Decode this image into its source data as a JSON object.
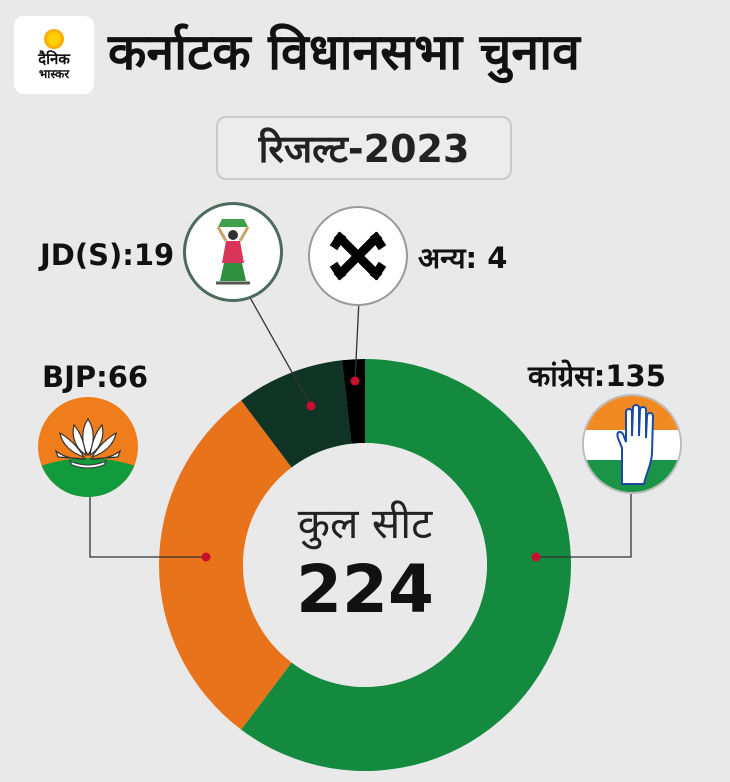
{
  "brand": {
    "line1": "दैनिक",
    "line2": "भास्कर"
  },
  "header": {
    "title": "कर्नाटक विधानसभा चुनाव",
    "subtitle": "रिजल्ट-2023"
  },
  "center": {
    "label": "कुल सीट",
    "total": "224"
  },
  "chart_data": {
    "type": "pie",
    "donut": true,
    "title": "कर्नाटक विधानसभा चुनाव",
    "subtitle": "रिजल्ट-2023",
    "total": 224,
    "slices": [
      {
        "party": "कांग्रेस",
        "label": "कांग्रेस:135",
        "value": 135,
        "color": "#138a3e",
        "icon": "congress-hand-icon"
      },
      {
        "party": "BJP",
        "label": "BJP:66",
        "value": 66,
        "color": "#e8731a",
        "icon": "bjp-lotus-icon"
      },
      {
        "party": "JD(S)",
        "label": "JD(S):19",
        "value": 19,
        "color": "#0f3324",
        "icon": "jds-farmer-woman-icon"
      },
      {
        "party": "अन्य",
        "label": "अन्य: 4",
        "value": 4,
        "color": "#000000",
        "icon": "others-ballot-icon"
      }
    ],
    "legend": "callout-labels-around"
  },
  "labels": {
    "congress": "कांग्रेस:135",
    "bjp": "BJP:66",
    "jds": "JD(S):19",
    "others": "अन्य: 4"
  }
}
